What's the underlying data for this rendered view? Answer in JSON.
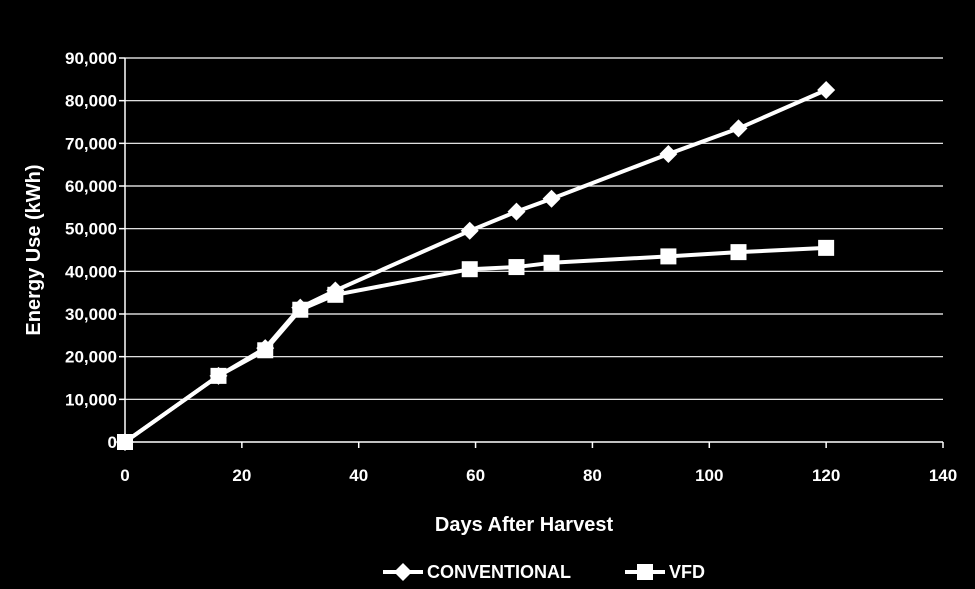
{
  "chart_data": {
    "type": "line",
    "title": "",
    "xlabel": "Days After Harvest",
    "ylabel": "Energy Use (kWh)",
    "xlim": [
      0,
      140
    ],
    "ylim": [
      0,
      90000
    ],
    "x_ticks": [
      0,
      20,
      40,
      60,
      80,
      100,
      120,
      140
    ],
    "x_tick_labels": [
      "0",
      "20",
      "40",
      "60",
      "80",
      "100",
      "120",
      "140"
    ],
    "y_ticks": [
      0,
      10000,
      20000,
      30000,
      40000,
      50000,
      60000,
      70000,
      80000,
      90000
    ],
    "y_tick_labels": [
      "0",
      "10,000",
      "20,000",
      "30,000",
      "40,000",
      "50,000",
      "60,000",
      "70,000",
      "80,000",
      "90,000"
    ],
    "grid": "horizontal",
    "legend_position": "bottom",
    "series": [
      {
        "name": "CONVENTIONAL",
        "marker": "diamond",
        "color": "#ffffff",
        "x": [
          0,
          16,
          24,
          30,
          36,
          59,
          67,
          73,
          93,
          105,
          120
        ],
        "y": [
          0,
          15500,
          22000,
          31500,
          35500,
          49500,
          54000,
          57000,
          67500,
          73500,
          82500
        ]
      },
      {
        "name": "VFD",
        "marker": "square",
        "color": "#ffffff",
        "x": [
          0,
          16,
          24,
          30,
          36,
          59,
          67,
          73,
          93,
          105,
          120
        ],
        "y": [
          0,
          15500,
          21500,
          31000,
          34500,
          40500,
          41000,
          42000,
          43500,
          44500,
          45500
        ]
      }
    ]
  }
}
